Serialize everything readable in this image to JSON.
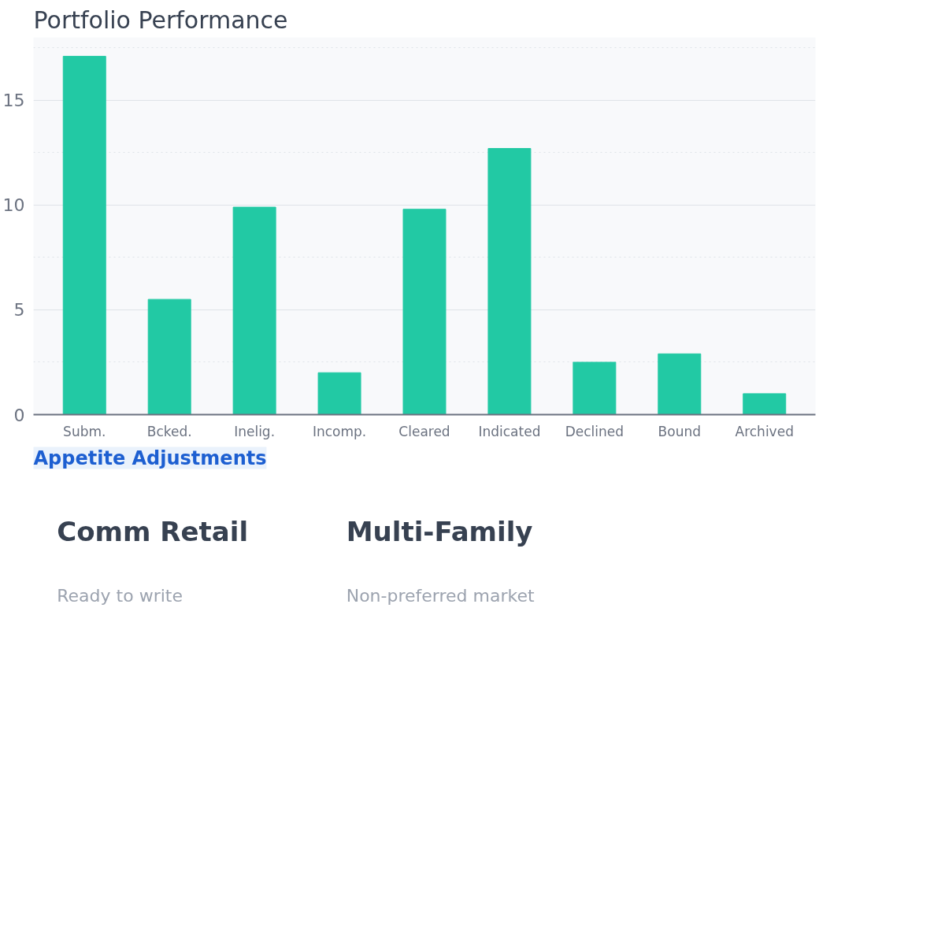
{
  "chart_data": [
    {
      "type": "bar",
      "title": "Portfolio Performance",
      "categories": [
        "Subm.",
        "Bcked.",
        "Inelig.",
        "Incomp.",
        "Cleared",
        "Indicated",
        "Declined",
        "Bound",
        "Archived"
      ],
      "values": [
        17.1,
        5.5,
        9.9,
        2.0,
        9.8,
        12.7,
        2.5,
        2.9,
        1.0
      ],
      "color": "#22c9a4",
      "ylim": [
        0,
        18
      ],
      "yticks": [
        0,
        5,
        10,
        15
      ],
      "grid": "y"
    },
    {
      "type": "other",
      "title": "Appetite Adjustments",
      "annotations": [
        "Comm Retail",
        "Ready to write",
        "Multi-Family",
        "Non-preferred market"
      ]
    }
  ]
}
